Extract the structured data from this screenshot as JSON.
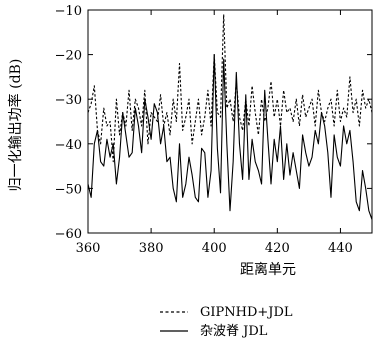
{
  "chart_data": {
    "type": "line",
    "title": "",
    "xlabel": "距离单元",
    "ylabel": "归一化输出功率 (dB)",
    "xlim": [
      360,
      450
    ],
    "ylim": [
      -60,
      -10
    ],
    "x_ticks": [
      360,
      380,
      400,
      420,
      440
    ],
    "y_ticks": [
      -60,
      -50,
      -40,
      -30,
      -20,
      -10
    ],
    "x_tick_labels": [
      "360",
      "380",
      "400",
      "420",
      "440"
    ],
    "y_tick_labels": [
      "−60",
      "−50",
      "−40",
      "−30",
      "−20",
      "−10"
    ],
    "grid": false,
    "legend_position": "below",
    "x": [
      360,
      361,
      362,
      363,
      364,
      365,
      366,
      367,
      368,
      369,
      370,
      371,
      372,
      373,
      374,
      375,
      376,
      377,
      378,
      379,
      380,
      381,
      382,
      383,
      384,
      385,
      386,
      387,
      388,
      389,
      390,
      391,
      392,
      393,
      394,
      395,
      396,
      397,
      398,
      399,
      400,
      401,
      402,
      403,
      404,
      405,
      406,
      407,
      408,
      409,
      410,
      411,
      412,
      413,
      414,
      415,
      416,
      417,
      418,
      419,
      420,
      421,
      422,
      423,
      424,
      425,
      426,
      427,
      428,
      429,
      430,
      431,
      432,
      433,
      434,
      435,
      436,
      437,
      438,
      439,
      440,
      441,
      442,
      443,
      444,
      445,
      446,
      447,
      448,
      449,
      450
    ],
    "series": [
      {
        "name": "GIPNHD+JDL",
        "style": "dashed",
        "values": [
          -33,
          -31,
          -27,
          -37,
          -40,
          -32,
          -36,
          -35,
          -44,
          -30,
          -38,
          -33,
          -36,
          -28,
          -37,
          -30,
          -32,
          -36,
          -28,
          -40,
          -33,
          -34,
          -35,
          -29,
          -36,
          -33,
          -38,
          -30,
          -35,
          -22,
          -37,
          -34,
          -30,
          -40,
          -35,
          -30,
          -38,
          -34,
          -28,
          -36,
          -20,
          -33,
          -34,
          -11,
          -32,
          -30,
          -35,
          -26,
          -34,
          -37,
          -30,
          -36,
          -27,
          -33,
          -38,
          -30,
          -35,
          -32,
          -26,
          -34,
          -30,
          -36,
          -28,
          -33,
          -32,
          -35,
          -30,
          -36,
          -29,
          -34,
          -32,
          -30,
          -36,
          -28,
          -33,
          -35,
          -32,
          -30,
          -36,
          -28,
          -35,
          -32,
          -34,
          -25,
          -33,
          -30,
          -36,
          -28,
          -32,
          -30,
          -33
        ]
      },
      {
        "name": "杂波脊 JDL",
        "style": "solid",
        "values": [
          -49,
          -52,
          -40,
          -37,
          -44,
          -45,
          -39,
          -43,
          -40,
          -49,
          -43,
          -33,
          -38,
          -43,
          -42,
          -32,
          -36,
          -42,
          -30,
          -34,
          -39,
          -31,
          -33,
          -40,
          -36,
          -44,
          -43,
          -50,
          -53,
          -40,
          -52,
          -49,
          -43,
          -47,
          -52,
          -53,
          -41,
          -42,
          -52,
          -46,
          -20,
          -41,
          -51,
          -21,
          -40,
          -55,
          -44,
          -24,
          -40,
          -48,
          -29,
          -48,
          -39,
          -44,
          -46,
          -49,
          -28,
          -39,
          -49,
          -39,
          -44,
          -36,
          -48,
          -40,
          -47,
          -42,
          -46,
          -50,
          -38,
          -42,
          -45,
          -43,
          -37,
          -40,
          -33,
          -36,
          -42,
          -52,
          -38,
          -43,
          -45,
          -36,
          -40,
          -37,
          -44,
          -53,
          -55,
          -46,
          -50,
          -55,
          -57
        ]
      }
    ]
  }
}
